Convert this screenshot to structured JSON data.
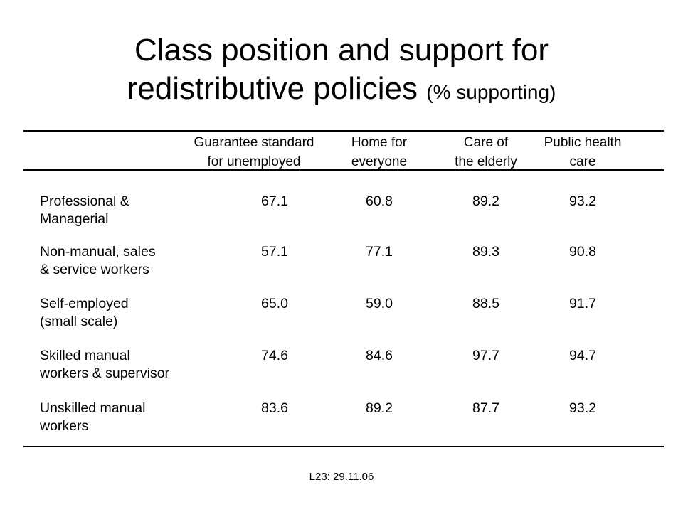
{
  "slide": {
    "title_line1": "Class position and support for",
    "title_line2_main": "redistributive policies",
    "title_line2_small": "(% supporting)",
    "footer": "L23: 29.11.06"
  },
  "table": {
    "columns": [
      {
        "line1": "Guarantee standard",
        "line2": "for unemployed"
      },
      {
        "line1": "Home for",
        "line2": "everyone"
      },
      {
        "line1": "Care of",
        "line2": "the elderly"
      },
      {
        "line1": "Public health",
        "line2": "care"
      }
    ],
    "rows": [
      {
        "label1": "Professional &",
        "label2": "Managerial",
        "values": [
          "67.1",
          "60.8",
          "89.2",
          "93.2"
        ]
      },
      {
        "label1": "Non-manual, sales",
        "label2": "& service workers",
        "values": [
          "57.1",
          "77.1",
          "89.3",
          "90.8"
        ]
      },
      {
        "label1": "Self-employed",
        "label2": "(small scale)",
        "values": [
          "65.0",
          "59.0",
          "88.5",
          "91.7"
        ]
      },
      {
        "label1": "Skilled manual",
        "label2": "workers & supervisor",
        "values": [
          "74.6",
          "84.6",
          "97.7",
          "94.7"
        ]
      },
      {
        "label1": "Unskilled manual",
        "label2": "workers",
        "values": [
          "83.6",
          "89.2",
          "87.7",
          "93.2"
        ]
      }
    ]
  }
}
